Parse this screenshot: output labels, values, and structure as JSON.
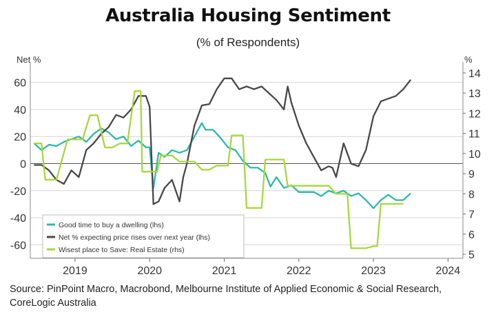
{
  "chart_data": {
    "type": "line",
    "title": "Australia Housing Sentiment",
    "subtitle": "(% of Respondents)",
    "ylabel_left": "Net %",
    "ylabel_right": "%",
    "ylim_left": [
      -70,
      70
    ],
    "ylim_right": [
      4.8,
      14.2
    ],
    "yticks_left": [
      60,
      40,
      20,
      0,
      -20,
      -40,
      -60
    ],
    "yticks_right": [
      14,
      13,
      12,
      11,
      10,
      9,
      8,
      7,
      6,
      5
    ],
    "xlim": [
      2018.4,
      2024.2
    ],
    "xticks": [
      2019,
      2020,
      2021,
      2022,
      2023,
      2024
    ],
    "xtick_labels": [
      "2019",
      "2020",
      "2021",
      "2022",
      "2023",
      "2024"
    ],
    "zero_line": true,
    "grid": "horizontal",
    "legend_position": "bottom-left",
    "series": [
      {
        "name": "Good time to buy a dwelling (lhs)",
        "axis": "left",
        "color": "#2db8a8",
        "x": [
          2018.45,
          2018.55,
          2018.65,
          2018.75,
          2018.85,
          2018.95,
          2019.05,
          2019.15,
          2019.25,
          2019.35,
          2019.45,
          2019.55,
          2019.65,
          2019.75,
          2019.85,
          2019.95,
          2020.0,
          2020.05,
          2020.12,
          2020.2,
          2020.3,
          2020.4,
          2020.5,
          2020.6,
          2020.7,
          2020.75,
          2020.85,
          2020.95,
          2021.05,
          2021.15,
          2021.25,
          2021.35,
          2021.45,
          2021.55,
          2021.62,
          2021.7,
          2021.8,
          2021.9,
          2022.0,
          2022.1,
          2022.2,
          2022.3,
          2022.4,
          2022.5,
          2022.6,
          2022.7,
          2022.8,
          2022.9,
          2023.0,
          2023.1,
          2023.2,
          2023.3,
          2023.4,
          2023.5
        ],
        "values": [
          15,
          10,
          14,
          13,
          16,
          18,
          20,
          16,
          22,
          26,
          23,
          18,
          20,
          13,
          17,
          12,
          12,
          -18,
          8,
          5,
          10,
          8,
          10,
          20,
          30,
          25,
          25,
          19,
          12,
          10,
          2,
          -3,
          -3,
          -7,
          -17,
          -10,
          -18,
          -16,
          -21,
          -21,
          -21,
          -24,
          -20,
          -22,
          -20,
          -24,
          -22,
          -27,
          -33,
          -27,
          -23,
          -27,
          -27,
          -22
        ]
      },
      {
        "name": "Net % expecting price rises over next year (lhs)",
        "axis": "left",
        "color": "#474747",
        "x": [
          2018.45,
          2018.55,
          2018.65,
          2018.75,
          2018.85,
          2018.95,
          2019.05,
          2019.15,
          2019.25,
          2019.35,
          2019.45,
          2019.55,
          2019.65,
          2019.75,
          2019.85,
          2019.95,
          2020.0,
          2020.05,
          2020.12,
          2020.2,
          2020.3,
          2020.4,
          2020.45,
          2020.5,
          2020.6,
          2020.7,
          2020.8,
          2020.9,
          2021.0,
          2021.1,
          2021.2,
          2021.3,
          2021.4,
          2021.5,
          2021.6,
          2021.7,
          2021.8,
          2021.85,
          2021.9,
          2022.0,
          2022.1,
          2022.2,
          2022.3,
          2022.4,
          2022.45,
          2022.5,
          2022.6,
          2022.7,
          2022.8,
          2022.9,
          2023.0,
          2023.1,
          2023.2,
          2023.3,
          2023.4,
          2023.5
        ],
        "values": [
          -1,
          -1,
          -5,
          -12,
          -15,
          -5,
          -10,
          10,
          15,
          22,
          27,
          36,
          34,
          40,
          50,
          50,
          42,
          -30,
          -28,
          -18,
          -12,
          -28,
          -10,
          0,
          28,
          43,
          44,
          55,
          63,
          63,
          55,
          57,
          55,
          57,
          52,
          47,
          40,
          57,
          45,
          28,
          15,
          5,
          -5,
          -2,
          -3,
          -10,
          15,
          0,
          -2,
          10,
          35,
          46,
          48,
          50,
          55,
          62
        ]
      },
      {
        "name": "Wisest place to Save: Real Estate (rhs)",
        "axis": "right",
        "color": "#a8d63c",
        "x": [
          2018.45,
          2018.55,
          2018.6,
          2018.75,
          2018.9,
          2019.0,
          2019.1,
          2019.2,
          2019.3,
          2019.4,
          2019.5,
          2019.6,
          2019.7,
          2019.8,
          2019.88,
          2019.9,
          2020.0,
          2020.1,
          2020.15,
          2020.2,
          2020.3,
          2020.4,
          2020.5,
          2020.6,
          2020.7,
          2020.8,
          2020.9,
          2021.0,
          2021.05,
          2021.1,
          2021.2,
          2021.25,
          2021.3,
          2021.4,
          2021.5,
          2021.55,
          2021.6,
          2021.7,
          2021.8,
          2021.85,
          2021.9,
          2022.0,
          2022.1,
          2022.2,
          2022.3,
          2022.4,
          2022.5,
          2022.6,
          2022.65,
          2022.7,
          2022.8,
          2022.9,
          2023.0,
          2023.05,
          2023.1,
          2023.2,
          2023.3,
          2023.4
        ],
        "values": [
          10.5,
          10.5,
          8.7,
          8.7,
          10.7,
          10.7,
          10.7,
          11.9,
          11.9,
          10.3,
          10.3,
          10.5,
          10.5,
          13.1,
          13.1,
          9.1,
          9.1,
          9.1,
          9.9,
          9.9,
          9.9,
          9.6,
          9.6,
          9.6,
          9.2,
          9.2,
          9.4,
          9.4,
          9.4,
          10.9,
          10.9,
          10.9,
          7.3,
          7.3,
          7.3,
          9.7,
          9.7,
          9.7,
          9.7,
          8.4,
          8.4,
          8.4,
          8.4,
          8.4,
          8.4,
          8.4,
          8.0,
          8.0,
          8.0,
          5.3,
          5.3,
          5.3,
          5.4,
          5.4,
          7.5,
          7.5,
          7.5,
          7.5
        ]
      }
    ]
  },
  "source_note": "Source: PinPoint Macro, Macrobond, Melbourne Institute of Applied Economic & Social Research, CoreLogic Australia"
}
